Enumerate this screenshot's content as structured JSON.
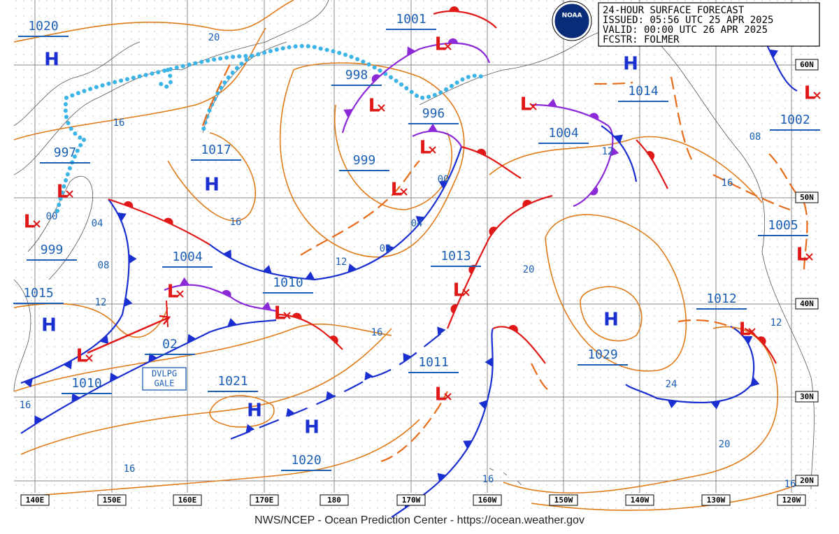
{
  "header": {
    "lines": [
      "24-HOUR SURFACE FORECAST",
      "ISSUED: 05:56 UTC 25 APR 2025",
      "VALID:  00:00 UTC 26 APR 2025",
      "FCSTR:  FOLMER"
    ],
    "logo": "NOAA"
  },
  "longitudes": [
    "140E",
    "150E",
    "160E",
    "170E",
    "180",
    "170W",
    "160W",
    "150W",
    "140W",
    "130W",
    "120W"
  ],
  "latitudes": [
    "60N",
    "50N",
    "40N",
    "30N",
    "20N"
  ],
  "pressure_labels": [
    "1020",
    "1001",
    "998",
    "996",
    "997",
    "1017",
    "999",
    "1004",
    "1014",
    "1002",
    "999",
    "1004",
    "1015",
    "1010",
    "1013",
    "1005",
    "1012",
    "1029",
    "1011",
    "1021",
    "1010",
    "1020",
    "02"
  ],
  "high_symbol": "H",
  "low_symbol": "L",
  "isobar_labels": [
    "20",
    "16",
    "16",
    "00",
    "04",
    "00",
    "08",
    "12",
    "04",
    "08",
    "12",
    "12",
    "08",
    "16",
    "20",
    "16",
    "24",
    "20",
    "12",
    "16",
    "16",
    "16",
    "16"
  ],
  "warning": [
    "DVLPG",
    "GALE"
  ],
  "footer": "NWS/NCEP - Ocean Prediction Center - https://ocean.weather.gov"
}
